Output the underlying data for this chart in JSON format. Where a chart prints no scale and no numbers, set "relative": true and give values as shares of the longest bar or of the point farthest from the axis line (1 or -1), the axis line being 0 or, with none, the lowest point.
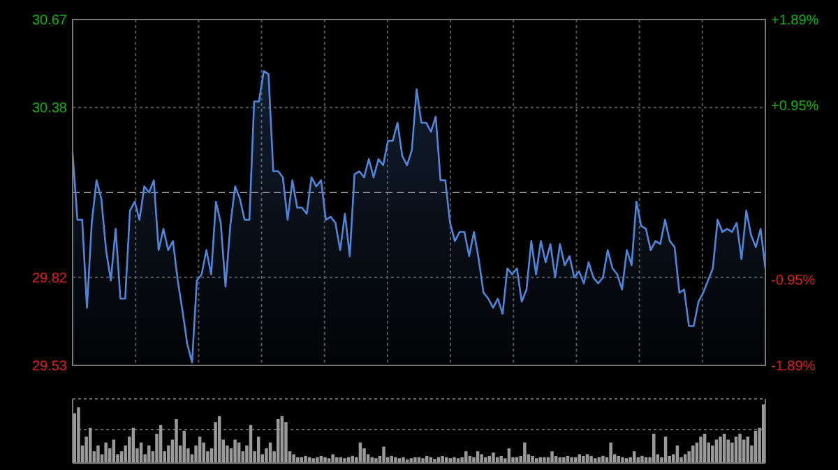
{
  "chart_data": [
    {
      "type": "area",
      "categories": [
        null,
        null,
        null,
        null,
        null,
        null,
        null,
        null,
        null,
        null,
        null,
        null,
        null,
        null,
        null,
        null,
        null,
        null,
        null,
        null,
        null,
        null,
        null,
        null,
        null,
        null,
        null,
        null,
        null,
        null,
        null,
        null,
        null,
        null,
        null,
        null,
        null,
        null,
        null,
        null,
        null,
        null,
        null,
        null,
        null,
        null,
        null,
        null,
        null,
        null,
        null,
        null,
        null,
        null,
        null,
        null,
        null,
        null,
        null,
        null,
        null,
        null,
        null,
        null,
        null,
        null,
        null,
        null,
        null,
        null,
        null,
        null,
        null,
        null,
        null,
        null,
        null,
        null,
        null,
        null,
        null,
        null,
        null,
        null,
        null,
        null,
        null,
        null,
        null,
        null,
        null,
        null,
        null,
        null,
        null,
        null,
        null,
        null,
        null,
        null,
        null,
        null,
        null,
        null,
        null,
        null,
        null,
        null,
        null,
        null,
        null,
        null,
        null,
        null,
        null,
        null,
        null,
        null,
        null,
        null,
        null,
        null,
        null,
        null,
        null,
        null,
        null,
        null,
        null,
        null,
        null,
        null,
        null,
        null,
        null,
        null,
        null,
        null,
        null,
        null,
        null,
        null,
        null,
        null,
        null,
        null
      ],
      "series": [
        {
          "color": "#4f86d9",
          "values": [
            30.23,
            30.01,
            30.01,
            29.72,
            30.0,
            30.14,
            30.08,
            29.91,
            29.81,
            29.98,
            29.75,
            29.75,
            30.04,
            30.07,
            30.01,
            30.12,
            30.1,
            30.14,
            29.91,
            29.98,
            29.91,
            29.94,
            29.81,
            29.71,
            29.6,
            29.54,
            29.81,
            29.83,
            29.91,
            29.83,
            30.07,
            30.0,
            29.79,
            29.99,
            30.12,
            30.08,
            30.01,
            30.01,
            30.4,
            30.4,
            30.5,
            30.49,
            30.17,
            30.17,
            30.15,
            30.01,
            30.14,
            30.05,
            30.05,
            30.03,
            30.15,
            30.12,
            30.14,
            30.01,
            30.02,
            30.0,
            29.91,
            30.03,
            29.89,
            30.16,
            30.17,
            30.15,
            30.21,
            30.15,
            30.21,
            30.19,
            30.27,
            30.27,
            30.33,
            30.22,
            30.19,
            30.24,
            30.44,
            30.33,
            30.33,
            30.3,
            30.35,
            30.14,
            30.14,
            30.0,
            29.94,
            29.97,
            29.97,
            29.89,
            29.97,
            29.88,
            29.77,
            29.75,
            29.72,
            29.75,
            29.7,
            29.85,
            29.83,
            29.85,
            29.74,
            29.78,
            29.94,
            29.83,
            29.94,
            29.87,
            29.93,
            29.82,
            29.93,
            29.86,
            29.89,
            29.82,
            29.84,
            29.8,
            29.87,
            29.82,
            29.8,
            29.82,
            29.91,
            29.85,
            29.83,
            29.78,
            29.91,
            29.86,
            30.07,
            29.99,
            29.98,
            29.91,
            29.94,
            29.93,
            30.01,
            29.94,
            29.92,
            29.77,
            29.78,
            29.66,
            29.66,
            29.74,
            29.77,
            29.81,
            29.85,
            30.01,
            29.97,
            29.98,
            29.97,
            30.0,
            29.88,
            30.04,
            29.96,
            29.92,
            29.98,
            29.85
          ]
        }
      ],
      "ylim": [
        29.53,
        30.67
      ],
      "yticks": [
        29.53,
        29.82,
        30.38,
        30.67
      ],
      "y2lim": [
        -1.89,
        1.89
      ],
      "y2ticks": [
        {
          "value": -1.89,
          "label": "-1.89%"
        },
        {
          "value": -0.95,
          "label": "-0.95%"
        },
        {
          "value": 0.95,
          "label": "+0.95%"
        },
        {
          "value": 1.89,
          "label": "+1.89%"
        }
      ],
      "ref_lines": [
        {
          "axis": "y",
          "value": 30.1,
          "label": null,
          "color": "#8a8a8a",
          "line_style": "dashed"
        }
      ],
      "grid": true,
      "tick_labels": "y"
    },
    {
      "type": "bar",
      "relative": true,
      "color": "#9a9a9a",
      "ref_lines": [
        {
          "axis": "y",
          "value": 0.57,
          "label": null,
          "color": "#666666",
          "line_style": "dotted"
        }
      ],
      "categories": [
        null,
        null,
        null,
        null,
        null,
        null,
        null,
        null,
        null,
        null,
        null,
        null,
        null,
        null,
        null,
        null,
        null,
        null,
        null,
        null,
        null,
        null,
        null,
        null,
        null,
        null,
        null,
        null,
        null,
        null,
        null,
        null,
        null,
        null,
        null,
        null,
        null,
        null,
        null,
        null,
        null,
        null,
        null,
        null,
        null,
        null,
        null,
        null,
        null,
        null,
        null,
        null,
        null,
        null,
        null,
        null,
        null,
        null,
        null,
        null,
        null,
        null,
        null,
        null,
        null,
        null,
        null,
        null,
        null,
        null,
        null,
        null,
        null,
        null,
        null,
        null,
        null,
        null,
        null,
        null,
        null,
        null,
        null,
        null,
        null,
        null,
        null,
        null,
        null,
        null,
        null,
        null,
        null,
        null,
        null,
        null,
        null,
        null,
        null,
        null,
        null,
        null,
        null,
        null,
        null,
        null,
        null,
        null,
        null,
        null,
        null,
        null,
        null,
        null,
        null,
        null,
        null,
        null,
        null,
        null,
        null,
        null,
        null,
        null,
        null,
        null,
        null,
        null,
        null,
        null,
        null,
        null,
        null,
        null,
        null,
        null,
        null,
        null,
        null,
        null,
        null,
        null,
        null,
        null,
        null,
        null,
        null,
        null,
        null,
        null,
        null,
        null,
        null,
        null,
        null,
        null,
        null,
        null,
        null,
        null,
        null,
        null,
        null,
        null,
        null,
        null,
        null,
        null,
        null,
        null,
        null,
        null,
        null,
        null,
        null,
        null,
        null
      ],
      "values": [
        0.85,
        0.95,
        0.3,
        0.45,
        0.6,
        0.2,
        0.3,
        0.15,
        0.35,
        0.25,
        0.4,
        0.15,
        0.2,
        0.3,
        0.45,
        0.6,
        0.25,
        0.35,
        0.15,
        0.3,
        0.2,
        0.5,
        0.65,
        0.2,
        0.3,
        0.4,
        0.75,
        0.3,
        0.55,
        0.25,
        0.15,
        0.3,
        0.45,
        0.35,
        0.2,
        0.25,
        0.7,
        0.8,
        0.4,
        0.3,
        0.25,
        0.4,
        0.35,
        0.2,
        0.3,
        0.65,
        0.2,
        0.45,
        0.15,
        0.25,
        0.35,
        0.2,
        0.75,
        0.8,
        0.7,
        0.2,
        0.15,
        0.1,
        0.1,
        0.12,
        0.1,
        0.08,
        0.1,
        0.12,
        0.1,
        0.08,
        0.15,
        0.1,
        0.1,
        0.08,
        0.1,
        0.12,
        0.1,
        0.35,
        0.25,
        0.15,
        0.1,
        0.08,
        0.12,
        0.28,
        0.1,
        0.12,
        0.1,
        0.08,
        0.1,
        0.06,
        0.08,
        0.1,
        0.1,
        0.08,
        0.12,
        0.1,
        0.07,
        0.1,
        0.12,
        0.1,
        0.08,
        0.1,
        0.08,
        0.1,
        0.2,
        0.12,
        0.1,
        0.2,
        0.15,
        0.1,
        0.12,
        0.18,
        0.1,
        0.12,
        0.08,
        0.25,
        0.1,
        0.1,
        0.12,
        0.35,
        0.15,
        0.12,
        0.08,
        0.1,
        0.1,
        0.1,
        0.2,
        0.12,
        0.1,
        0.1,
        0.12,
        0.1,
        0.1,
        0.15,
        0.12,
        0.15,
        0.12,
        0.08,
        0.1,
        0.12,
        0.1,
        0.35,
        0.15,
        0.12,
        0.1,
        0.08,
        0.1,
        0.2,
        0.1,
        0.12,
        0.1,
        0.1,
        0.5,
        0.15,
        0.1,
        0.45,
        0.12,
        0.15,
        0.3,
        0.1,
        0.15,
        0.2,
        0.3,
        0.35,
        0.45,
        0.5,
        0.35,
        0.3,
        0.4,
        0.45,
        0.5,
        0.4,
        0.35,
        0.45,
        0.5,
        0.4,
        0.45,
        0.3,
        0.55,
        0.6,
        1.0
      ]
    }
  ]
}
